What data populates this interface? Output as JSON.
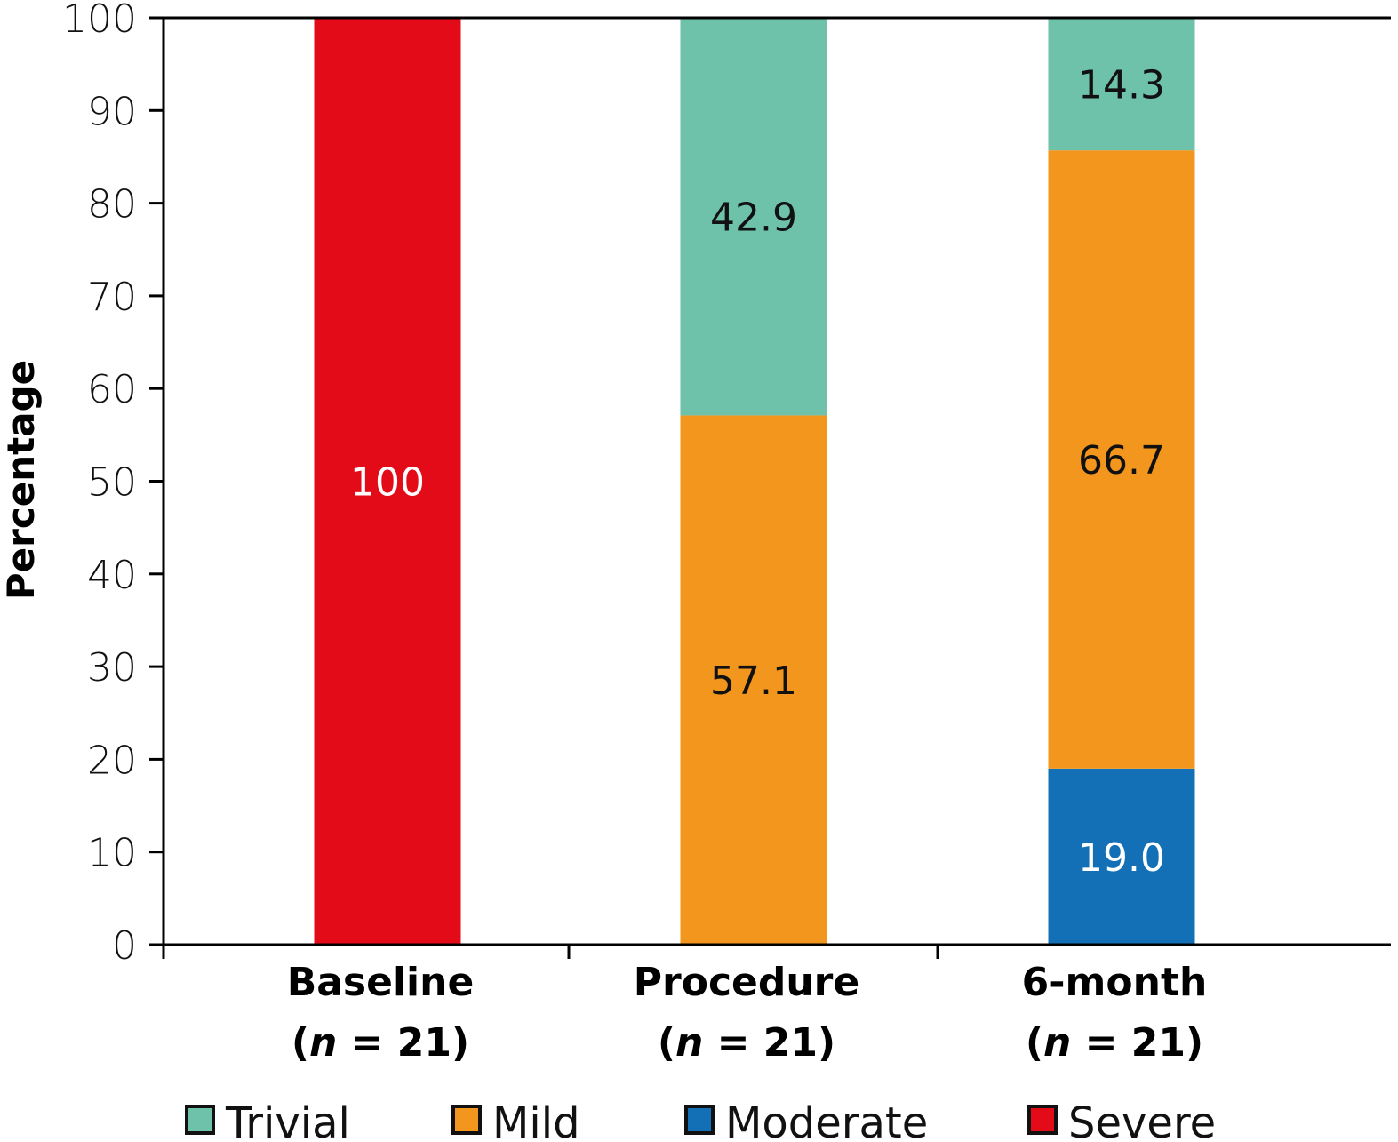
{
  "chart_data": {
    "type": "bar",
    "stacked": true,
    "title": "",
    "xlabel": "",
    "ylabel": "Percentage",
    "ylim": [
      0,
      100
    ],
    "yticks": [
      0,
      10,
      20,
      30,
      40,
      50,
      60,
      70,
      80,
      90,
      100
    ],
    "grid": false,
    "legend_position": "bottom",
    "categories": [
      {
        "name": "Baseline",
        "n_label": "(n = 21)",
        "n_prefix": "(",
        "n_var": "n",
        "n_suffix": " = 21)"
      },
      {
        "name": "Procedure",
        "n_label": "(n = 21)",
        "n_prefix": "(",
        "n_var": "n",
        "n_suffix": " = 21)"
      },
      {
        "name": "6-month",
        "n_label": "(n = 21)",
        "n_prefix": "(",
        "n_var": "n",
        "n_suffix": " = 21)"
      }
    ],
    "series": [
      {
        "name": "Moderate",
        "color": "#1470b6",
        "label_color": "#ffffff",
        "values": [
          0,
          0,
          19.0
        ],
        "labels": [
          "",
          "",
          "19.0"
        ]
      },
      {
        "name": "Mild",
        "color": "#f2961d",
        "label_color": "#111111",
        "values": [
          0,
          57.1,
          66.7
        ],
        "labels": [
          "",
          "57.1",
          "66.7"
        ]
      },
      {
        "name": "Trivial",
        "color": "#6fc2aa",
        "label_color": "#111111",
        "values": [
          0,
          42.9,
          14.3
        ],
        "labels": [
          "",
          "42.9",
          "14.3"
        ]
      },
      {
        "name": "Severe",
        "color": "#e30b17",
        "label_color": "#ffffff",
        "values": [
          100,
          0,
          0
        ],
        "labels": [
          "100",
          "",
          ""
        ]
      }
    ],
    "legend": [
      {
        "name": "Trivial",
        "color": "#6fc2aa"
      },
      {
        "name": "Mild",
        "color": "#f2961d"
      },
      {
        "name": "Moderate",
        "color": "#1470b6"
      },
      {
        "name": "Severe",
        "color": "#e30b17"
      }
    ]
  }
}
